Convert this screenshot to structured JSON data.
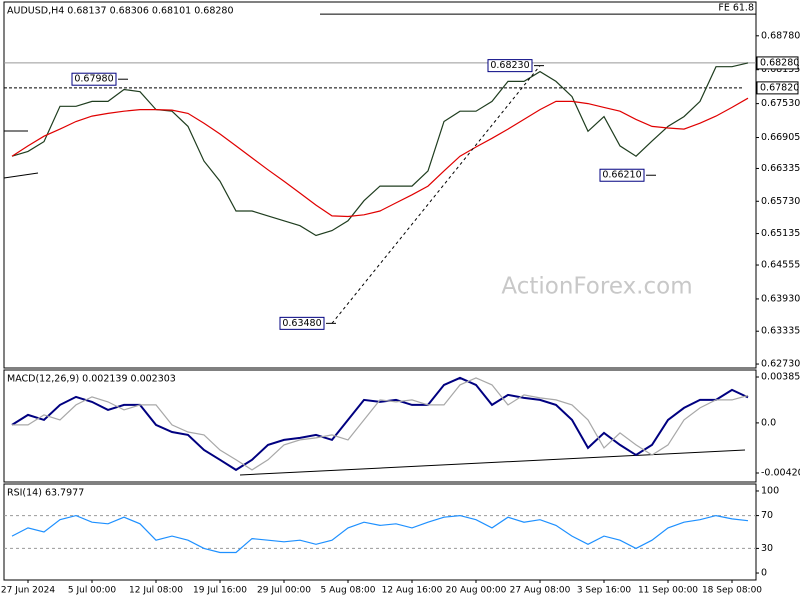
{
  "chart_data": [
    {
      "type": "line",
      "title": "AUDUSD,H4 0.68137 0.68306 0.68101 0.68280",
      "watermark": "ActionForex.com",
      "xlim": [
        -0.5,
        46.5
      ],
      "ylim": [
        0.62657,
        0.69403
      ],
      "yticks": [
        {
          "value": 0.6878,
          "label": "0.68780"
        },
        {
          "value": 0.68155,
          "label": "0.68155"
        },
        {
          "value": 0.6753,
          "label": "0.67530"
        },
        {
          "value": 0.66905,
          "label": "0.66905"
        },
        {
          "value": 0.66335,
          "label": "0.66335"
        },
        {
          "value": 0.6573,
          "label": "0.65730"
        },
        {
          "value": 0.65135,
          "label": "0.65135"
        },
        {
          "value": 0.64555,
          "label": "0.64555"
        },
        {
          "value": 0.6393,
          "label": "0.63930"
        },
        {
          "value": 0.63335,
          "label": "0.63335"
        },
        {
          "value": 0.6273,
          "label": "0.62730"
        }
      ],
      "series": [
        {
          "color": "#1f3d1f",
          "values": [
            0.6656,
            0.6665,
            0.6683,
            0.6748,
            0.6748,
            0.6757,
            0.6757,
            0.6779,
            0.6775,
            0.6742,
            0.6739,
            0.6711,
            0.6647,
            0.661,
            0.6555,
            0.6555,
            0.6546,
            0.6537,
            0.6528,
            0.651,
            0.6519,
            0.6537,
            0.6574,
            0.6601,
            0.6601,
            0.6601,
            0.6629,
            0.672,
            0.6739,
            0.6739,
            0.6757,
            0.6794,
            0.6794,
            0.6812,
            0.6794,
            0.6766,
            0.6702,
            0.6729,
            0.6675,
            0.6656,
            0.6684,
            0.6711,
            0.6729,
            0.6757,
            0.6821,
            0.6821,
            0.6828
          ]
        },
        {
          "color": "#e00000",
          "values": [
            0.6656,
            0.6675,
            0.6693,
            0.6706,
            0.672,
            0.673,
            0.6735,
            0.6739,
            0.6742,
            0.6742,
            0.6741,
            0.6735,
            0.6717,
            0.6697,
            0.6675,
            0.6653,
            0.6631,
            0.661,
            0.6588,
            0.6566,
            0.6546,
            0.6545,
            0.6548,
            0.6555,
            0.657,
            0.6585,
            0.6601,
            0.6629,
            0.6656,
            0.6673,
            0.6689,
            0.6706,
            0.6724,
            0.6742,
            0.6757,
            0.6757,
            0.6753,
            0.6746,
            0.6739,
            0.6724,
            0.6711,
            0.6708,
            0.6706,
            0.6717,
            0.673,
            0.6746,
            0.6763
          ]
        }
      ],
      "annotations": [
        {
          "x": 7,
          "value": 0.6798,
          "label": "0.67980"
        },
        {
          "x": 33,
          "value": 0.6823,
          "label": "0.68230"
        },
        {
          "x": 20,
          "value": 0.6348,
          "label": "0.63480"
        },
        {
          "x": 40,
          "value": 0.6621,
          "label": "0.66210"
        }
      ],
      "levels": [
        {
          "value": 0.6782,
          "label": "0.67820"
        }
      ],
      "current": {
        "value": 0.6828,
        "label": "0.68280"
      },
      "fe": {
        "value": 0.6918,
        "label": "FE 61.8"
      }
    },
    {
      "type": "line",
      "title": "MACD(12,26,9) 0.002139 0.002303",
      "xlim": [
        -0.5,
        46.5
      ],
      "ylim": [
        -0.004959,
        0.004439
      ],
      "yticks": [
        0.003852,
        {
          "value": 0,
          "label": "0.0"
        },
        -0.004204
      ],
      "series": [
        {
          "color": "#000080",
          "values": [
            -0.00017,
            0.00067,
            0.00025,
            0.00151,
            0.00218,
            0.00176,
            0.00109,
            0.00151,
            0.00151,
            -0.00017,
            -0.00076,
            -0.00101,
            -0.00227,
            -0.0031,
            -0.00394,
            -0.0031,
            -0.00185,
            -0.00143,
            -0.00126,
            -0.00101,
            -0.00143,
            0.00025,
            0.00193,
            0.00176,
            0.00193,
            0.00151,
            0.00151,
            0.00319,
            0.00378,
            0.00319,
            0.00151,
            0.00235,
            0.0021,
            0.00193,
            0.00151,
            0.00025,
            -0.0021,
            -0.00084,
            -0.00185,
            -0.00269,
            -0.00185,
            0.00025,
            0.00126,
            0.00193,
            0.00193,
            0.00277,
            0.00214
          ]
        },
        {
          "color": "#a8a8a8",
          "values": [
            -0.00017,
            -0.00017,
            0.00067,
            0.00025,
            0.00151,
            0.00218,
            0.00176,
            0.00109,
            0.00151,
            0.00151,
            -0.00017,
            -0.00076,
            -0.00101,
            -0.00227,
            -0.0031,
            -0.00394,
            -0.0031,
            -0.00185,
            -0.00143,
            -0.00126,
            -0.00101,
            -0.00143,
            0.00025,
            0.00193,
            0.00176,
            0.00193,
            0.00151,
            0.00151,
            0.00319,
            0.00378,
            0.00319,
            0.00151,
            0.00235,
            0.0021,
            0.00193,
            0.00151,
            0.00025,
            -0.0021,
            -0.00084,
            -0.00185,
            -0.00269,
            -0.00185,
            0.00025,
            0.00126,
            0.00193,
            0.00193,
            0.0023
          ]
        }
      ]
    },
    {
      "type": "line",
      "title": "RSI(14) 63.7977",
      "xlim": [
        -0.5,
        46.5
      ],
      "ylim": [
        -8.5,
        108.5
      ],
      "yticks": [
        100,
        70,
        30,
        0
      ],
      "hlines": [
        70,
        30
      ],
      "xticks": [
        {
          "value": 1,
          "label": "27 Jun 2024"
        },
        {
          "value": 5,
          "label": "5 Jul 00:00"
        },
        {
          "value": 9,
          "label": "12 Jul 08:00"
        },
        {
          "value": 13,
          "label": "19 Jul 16:00"
        },
        {
          "value": 17,
          "label": "29 Jul 00:00"
        },
        {
          "value": 21,
          "label": "5 Aug 08:00"
        },
        {
          "value": 25,
          "label": "12 Aug 16:00"
        },
        {
          "value": 29,
          "label": "20 Aug 00:00"
        },
        {
          "value": 33,
          "label": "27 Aug 08:00"
        },
        {
          "value": 37,
          "label": "3 Sep 16:00"
        },
        {
          "value": 41,
          "label": "11 Sep 00:00"
        },
        {
          "value": 45,
          "label": "18 Sep 08:00"
        }
      ],
      "series": [
        {
          "color": "#1e90ff",
          "values": [
            45,
            55,
            50,
            65,
            70,
            62,
            60,
            68,
            60,
            40,
            45,
            40,
            30,
            25,
            25,
            42,
            40,
            38,
            40,
            35,
            40,
            55,
            62,
            58,
            60,
            55,
            62,
            68,
            70,
            65,
            55,
            68,
            62,
            65,
            58,
            45,
            35,
            45,
            40,
            30,
            40,
            55,
            62,
            65,
            70,
            66,
            63.8
          ]
        }
      ]
    }
  ]
}
